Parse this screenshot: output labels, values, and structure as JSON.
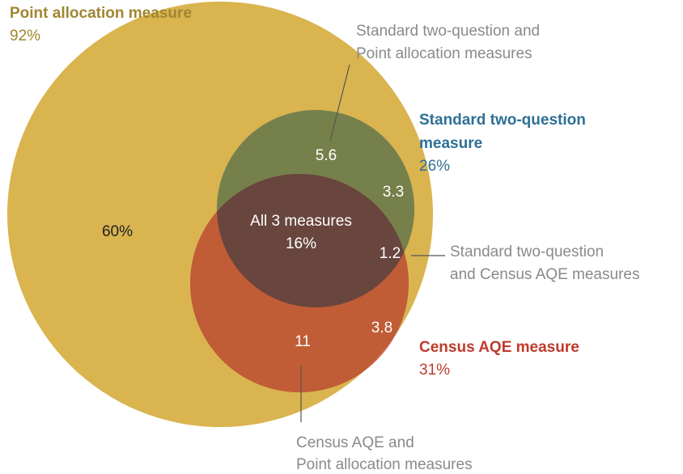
{
  "sets": [
    {
      "name": "Point allocation measure",
      "value": "92%"
    },
    {
      "name": "Standard two-question measure",
      "name_lines": [
        "Standard two-question",
        "measure"
      ],
      "value": "26%"
    },
    {
      "name": "Census AQE measure",
      "value": "31%"
    }
  ],
  "regions": {
    "point_only": "60%",
    "standard_point": "5.6",
    "standard_only": "3.3",
    "all_three_label": "All 3 measures",
    "all_three": "16%",
    "standard_census": "1.2",
    "census_only": "3.8",
    "census_point": "11"
  },
  "callouts": [
    {
      "lines": [
        "Standard two-question and",
        "Point allocation measures"
      ]
    },
    {
      "lines": [
        "Standard two-question",
        "and Census AQE measures"
      ]
    },
    {
      "lines": [
        "Census AQE and",
        "Point allocation measures"
      ]
    }
  ]
}
